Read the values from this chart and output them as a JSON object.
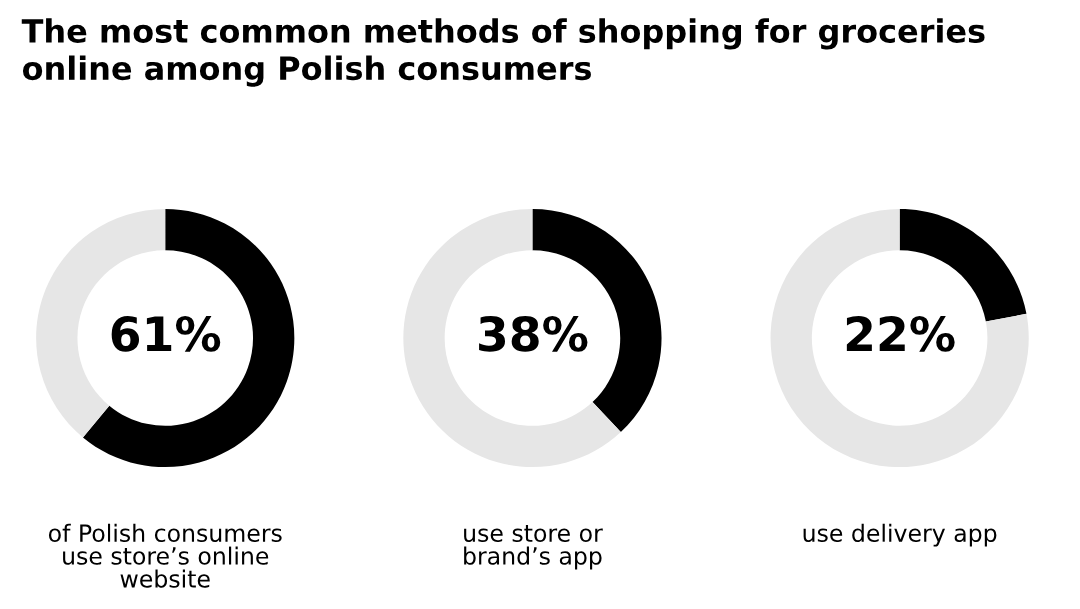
{
  "chart_data": [
    {
      "type": "donut",
      "title": "The most common methods of shopping for groceries online among Polish consumers",
      "categories": [
        null,
        null
      ],
      "values": [
        61,
        39
      ],
      "colors": [
        "#000000",
        "#e6e6e6"
      ],
      "annotations": [
        "61%"
      ],
      "xlabel": "of Polish consumers\nuse store’s online\nwebsite"
    },
    {
      "type": "donut",
      "categories": [
        null,
        null
      ],
      "values": [
        38,
        62
      ],
      "colors": [
        "#000000",
        "#e6e6e6"
      ],
      "annotations": [
        "38%"
      ],
      "xlabel": "use store or\nbrand’s app"
    },
    {
      "type": "donut",
      "categories": [
        null,
        null
      ],
      "values": [
        22,
        78
      ],
      "colors": [
        "#000000",
        "#e6e6e6"
      ],
      "annotations": [
        "22%"
      ],
      "xlabel": "use delivery app"
    }
  ]
}
